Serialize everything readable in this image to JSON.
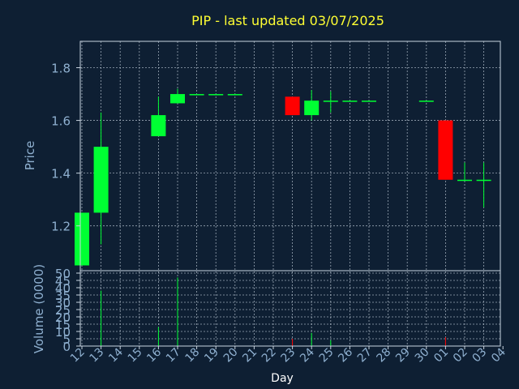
{
  "title": "PIP - last updated 03/07/2025",
  "colors": {
    "background": "#0e1f33",
    "title": "#ffff33",
    "axis_text": "#8fb0d0",
    "frame": "#c8d4e0",
    "grid": "#c8d4e0",
    "up": "#00ff33",
    "down": "#ff0000"
  },
  "chart_data": [
    {
      "type": "candlestick",
      "title": "PIP - last updated 03/07/2025",
      "ylabel": "Price",
      "ylim": [
        1.03,
        1.9
      ],
      "yticks": [
        1.2,
        1.4,
        1.6,
        1.8
      ],
      "ytick_labels": [
        "1.2",
        "1.4",
        "1.6",
        "1.8"
      ],
      "grid": true,
      "x": [
        "12",
        "13",
        "14",
        "15",
        "16",
        "17",
        "18",
        "19",
        "20",
        "21",
        "22",
        "23",
        "24",
        "25",
        "26",
        "27",
        "28",
        "29",
        "30",
        "01",
        "02",
        "03",
        "04"
      ],
      "candles": [
        {
          "x": "12",
          "open": 1.05,
          "high": 1.25,
          "low": 1.05,
          "close": 1.25
        },
        {
          "x": "13",
          "open": 1.25,
          "high": 1.63,
          "low": 1.13,
          "close": 1.5
        },
        {
          "x": "16",
          "open": 1.54,
          "high": 1.69,
          "low": 1.54,
          "close": 1.62
        },
        {
          "x": "17",
          "open": 1.665,
          "high": 1.72,
          "low": 1.665,
          "close": 1.7
        },
        {
          "x": "18",
          "open": 1.7,
          "high": 1.7,
          "low": 1.7,
          "close": 1.7
        },
        {
          "x": "19",
          "open": 1.7,
          "high": 1.7,
          "low": 1.7,
          "close": 1.7
        },
        {
          "x": "20",
          "open": 1.7,
          "high": 1.7,
          "low": 1.7,
          "close": 1.7
        },
        {
          "x": "23",
          "open": 1.69,
          "high": 1.69,
          "low": 1.62,
          "close": 1.62
        },
        {
          "x": "24",
          "open": 1.62,
          "high": 1.715,
          "low": 1.6,
          "close": 1.675
        },
        {
          "x": "25",
          "open": 1.675,
          "high": 1.71,
          "low": 1.63,
          "close": 1.675
        },
        {
          "x": "26",
          "open": 1.675,
          "high": 1.675,
          "low": 1.675,
          "close": 1.675
        },
        {
          "x": "27",
          "open": 1.675,
          "high": 1.675,
          "low": 1.675,
          "close": 1.675
        },
        {
          "x": "30",
          "open": 1.675,
          "high": 1.675,
          "low": 1.675,
          "close": 1.675
        },
        {
          "x": "01",
          "open": 1.6,
          "high": 1.6,
          "low": 1.375,
          "close": 1.375
        },
        {
          "x": "02",
          "open": 1.375,
          "high": 1.44,
          "low": 1.375,
          "close": 1.375
        },
        {
          "x": "03",
          "open": 1.375,
          "high": 1.44,
          "low": 1.27,
          "close": 1.375
        }
      ]
    },
    {
      "type": "bar",
      "ylabel": "Volume (0000)",
      "xlabel": "Day",
      "ylim": [
        0,
        50
      ],
      "yticks": [
        0,
        5,
        10,
        15,
        20,
        25,
        30,
        35,
        40,
        45,
        50
      ],
      "ytick_labels": [
        "0",
        "5",
        "10",
        "15",
        "20",
        "25",
        "30",
        "35",
        "40",
        "45",
        "50"
      ],
      "grid": true,
      "categories": [
        "12",
        "13",
        "14",
        "15",
        "16",
        "17",
        "18",
        "19",
        "20",
        "21",
        "22",
        "23",
        "24",
        "25",
        "26",
        "27",
        "28",
        "29",
        "30",
        "01",
        "02",
        "03",
        "04"
      ],
      "bars": [
        {
          "x": "13",
          "value": 38,
          "direction": "up"
        },
        {
          "x": "16",
          "value": 13,
          "direction": "up"
        },
        {
          "x": "17",
          "value": 47,
          "direction": "up"
        },
        {
          "x": "23",
          "value": 5,
          "direction": "down"
        },
        {
          "x": "24",
          "value": 9,
          "direction": "up"
        },
        {
          "x": "25",
          "value": 4,
          "direction": "up"
        },
        {
          "x": "01",
          "value": 6,
          "direction": "down"
        }
      ]
    }
  ]
}
